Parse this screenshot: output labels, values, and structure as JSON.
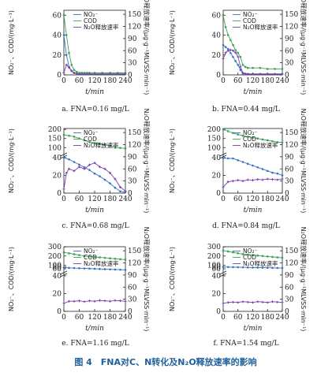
{
  "figure_caption": "图 4　FNA对C、N转化及N₂O释放速率的影响",
  "common": {
    "xlabel": "t/min",
    "ylabel_left": "NO₂⁻、COD/(mg·L⁻¹)",
    "ylabel_right": "N₂O释放速率/(μg·g⁻¹MLVSS·min⁻¹)",
    "xticks": [
      "0",
      "60",
      "120",
      "180",
      "240"
    ],
    "legend": [
      "NO₂⁻",
      "COD",
      "N₂O释放速率"
    ],
    "colors": {
      "no2": "#3b6fc4",
      "cod": "#3aa357",
      "n2o": "#7a3fa8",
      "axis": "#222222",
      "title": "#1f5f9a"
    }
  },
  "chart_data": [
    {
      "type": "line",
      "caption": "a. FNA=0.16 mg/L",
      "xlim": [
        0,
        240
      ],
      "left_axis": {
        "ticks": [
          0,
          20,
          40,
          60
        ],
        "ylim": [
          0,
          65
        ]
      },
      "right_axis": {
        "ticks": [
          0,
          30,
          60,
          90,
          120,
          150
        ],
        "ylim": [
          0,
          160
        ]
      },
      "series": [
        {
          "name": "NO₂⁻",
          "axis": "left",
          "x": [
            0,
            10,
            20,
            30,
            40,
            50,
            60,
            70,
            80,
            90,
            100,
            120,
            150,
            180,
            210,
            240
          ],
          "y": [
            40,
            20,
            8,
            4,
            2,
            1,
            1,
            1,
            1,
            1,
            1,
            1,
            1,
            1,
            1,
            1
          ]
        },
        {
          "name": "COD",
          "axis": "left",
          "x": [
            0,
            10,
            20,
            30,
            40,
            50,
            60,
            70,
            80,
            90,
            100,
            120,
            150,
            180,
            210,
            240
          ],
          "y": [
            60,
            40,
            22,
            10,
            5,
            3,
            2,
            2,
            2,
            2,
            2,
            2,
            2,
            2,
            2,
            2
          ]
        },
        {
          "name": "N₂O释放速率",
          "axis": "right",
          "x": [
            0,
            10,
            20,
            30,
            40,
            50,
            60,
            70,
            80,
            90,
            100,
            120,
            150,
            180,
            210,
            240
          ],
          "y": [
            5,
            25,
            18,
            10,
            5,
            3,
            2,
            2,
            2,
            2,
            2,
            2,
            2,
            2,
            2,
            2
          ]
        }
      ]
    },
    {
      "type": "line",
      "caption": "b. FNA=0.44 mg/L",
      "xlim": [
        0,
        240
      ],
      "left_axis": {
        "ticks": [
          0,
          20,
          40,
          60
        ],
        "ylim": [
          0,
          65
        ]
      },
      "right_axis": {
        "ticks": [
          0,
          30,
          60,
          90,
          120,
          150
        ],
        "ylim": [
          0,
          160
        ]
      },
      "series": [
        {
          "name": "NO₂⁻",
          "axis": "left",
          "x": [
            0,
            10,
            20,
            30,
            40,
            50,
            60,
            70,
            80,
            90,
            100,
            120,
            150,
            180,
            210,
            240
          ],
          "y": [
            30,
            28,
            26,
            22,
            18,
            14,
            10,
            5,
            1,
            1,
            1,
            1,
            1,
            1,
            1,
            1
          ]
        },
        {
          "name": "COD",
          "axis": "left",
          "x": [
            0,
            10,
            20,
            30,
            40,
            50,
            60,
            70,
            80,
            90,
            100,
            120,
            150,
            180,
            210,
            240
          ],
          "y": [
            60,
            48,
            40,
            35,
            30,
            25,
            22,
            18,
            10,
            8,
            7,
            7,
            7,
            6,
            6,
            6
          ]
        },
        {
          "name": "N₂O释放速率",
          "axis": "right",
          "x": [
            0,
            10,
            20,
            30,
            40,
            50,
            60,
            70,
            80,
            90,
            100,
            120,
            150,
            180,
            210,
            240
          ],
          "y": [
            40,
            55,
            60,
            62,
            60,
            55,
            45,
            20,
            5,
            3,
            2,
            2,
            2,
            2,
            2,
            2
          ]
        }
      ]
    },
    {
      "type": "line",
      "caption": "c. FNA=0.68 mg/L",
      "xlim": [
        0,
        240
      ],
      "left_axis": {
        "ticks": [
          0,
          20,
          40,
          100,
          150,
          200
        ],
        "broken": true
      },
      "right_axis": {
        "ticks": [
          0,
          30,
          60,
          90,
          120,
          150
        ],
        "ylim": [
          0,
          160
        ]
      },
      "series": [
        {
          "name": "NO₂⁻",
          "axis": "left",
          "x": [
            0,
            20,
            40,
            60,
            80,
            100,
            120,
            140,
            160,
            180,
            200,
            220,
            240
          ],
          "y": [
            40,
            38,
            35,
            32,
            29,
            26,
            22,
            19,
            15,
            11,
            6,
            2,
            1
          ]
        },
        {
          "name": "COD",
          "axis": "left",
          "x": [
            0,
            20,
            40,
            60,
            80,
            100,
            120,
            140,
            160,
            180,
            200,
            220,
            240
          ],
          "y": [
            170,
            165,
            160,
            150,
            140,
            130,
            125,
            120,
            115,
            110,
            100,
            98,
            96
          ]
        },
        {
          "name": "N₂O释放速率",
          "axis": "right",
          "x": [
            0,
            10,
            20,
            40,
            60,
            80,
            100,
            120,
            140,
            160,
            180,
            200,
            220,
            240
          ],
          "y": [
            10,
            50,
            60,
            55,
            65,
            60,
            70,
            75,
            65,
            60,
            50,
            35,
            15,
            5
          ]
        }
      ]
    },
    {
      "type": "line",
      "caption": "d. FNA=0.84 mg/L",
      "xlim": [
        0,
        240
      ],
      "left_axis": {
        "ticks": [
          0,
          20,
          40,
          100,
          150,
          200
        ],
        "broken": true
      },
      "right_axis": {
        "ticks": [
          0,
          30,
          60,
          90,
          120,
          150
        ],
        "ylim": [
          0,
          160
        ]
      },
      "series": [
        {
          "name": "NO₂⁻",
          "axis": "left",
          "x": [
            0,
            20,
            40,
            60,
            80,
            100,
            120,
            140,
            160,
            180,
            200,
            220,
            240
          ],
          "y": [
            42,
            41,
            39,
            37,
            35,
            33,
            31,
            29,
            27,
            25,
            23,
            22,
            20
          ]
        },
        {
          "name": "COD",
          "axis": "left",
          "x": [
            0,
            20,
            40,
            60,
            80,
            100,
            120,
            140,
            160,
            180,
            200,
            220,
            240
          ],
          "y": [
            200,
            190,
            180,
            172,
            165,
            160,
            155,
            150,
            145,
            140,
            135,
            130,
            128
          ]
        },
        {
          "name": "N₂O释放速率",
          "axis": "right",
          "x": [
            0,
            20,
            40,
            60,
            80,
            100,
            120,
            140,
            160,
            180,
            200,
            220,
            240
          ],
          "y": [
            15,
            28,
            30,
            32,
            30,
            33,
            32,
            34,
            33,
            35,
            34,
            33,
            35
          ]
        }
      ]
    },
    {
      "type": "line",
      "caption": "e. FNA=1.16 mg/L",
      "xlim": [
        0,
        240
      ],
      "left_axis": {
        "ticks": [
          0,
          20,
          40,
          60,
          80,
          100,
          200,
          300
        ],
        "broken": true
      },
      "right_axis": {
        "ticks": [
          0,
          30,
          60,
          90,
          120,
          150
        ],
        "ylim": [
          0,
          160
        ]
      },
      "series": [
        {
          "name": "NO₂⁻",
          "axis": "left",
          "x": [
            0,
            20,
            40,
            60,
            80,
            100,
            120,
            140,
            160,
            180,
            200,
            220,
            240
          ],
          "y": [
            72,
            70,
            68,
            66,
            64,
            62,
            60,
            58,
            56,
            54,
            52,
            50,
            48
          ]
        },
        {
          "name": "COD",
          "axis": "left",
          "x": [
            0,
            20,
            40,
            60,
            80,
            100,
            120,
            140,
            160,
            180,
            200,
            220,
            240
          ],
          "y": [
            240,
            230,
            220,
            210,
            200,
            195,
            190,
            185,
            180,
            175,
            170,
            165,
            160
          ]
        },
        {
          "name": "N₂O释放速率",
          "axis": "right",
          "x": [
            0,
            20,
            40,
            60,
            80,
            100,
            120,
            140,
            160,
            180,
            200,
            220,
            240
          ],
          "y": [
            20,
            25,
            25,
            26,
            24,
            26,
            25,
            27,
            26,
            25,
            27,
            26,
            25
          ]
        }
      ]
    },
    {
      "type": "line",
      "caption": "f. FNA=1.54 mg/L",
      "xlim": [
        0,
        240
      ],
      "left_axis": {
        "ticks": [
          0,
          20,
          40,
          60,
          80,
          100,
          200,
          300
        ],
        "broken": true
      },
      "right_axis": {
        "ticks": [
          0,
          30,
          60,
          90,
          120,
          150
        ],
        "ylim": [
          0,
          160
        ]
      },
      "series": [
        {
          "name": "NO₂⁻",
          "axis": "left",
          "x": [
            0,
            20,
            40,
            60,
            80,
            100,
            120,
            140,
            160,
            180,
            200,
            220,
            240
          ],
          "y": [
            80,
            79,
            78,
            77,
            76,
            75,
            74,
            73,
            72,
            71,
            70,
            69,
            68
          ]
        },
        {
          "name": "COD",
          "axis": "left",
          "x": [
            0,
            20,
            40,
            60,
            80,
            100,
            120,
            140,
            160,
            180,
            200,
            220,
            240
          ],
          "y": [
            260,
            250,
            240,
            230,
            220,
            215,
            210,
            205,
            200,
            195,
            190,
            185,
            180
          ]
        },
        {
          "name": "N₂O释放速率",
          "axis": "right",
          "x": [
            0,
            20,
            40,
            60,
            80,
            100,
            120,
            140,
            160,
            180,
            200,
            220,
            240
          ],
          "y": [
            20,
            22,
            23,
            22,
            24,
            23,
            22,
            24,
            23,
            22,
            24,
            23,
            22
          ]
        }
      ]
    }
  ]
}
